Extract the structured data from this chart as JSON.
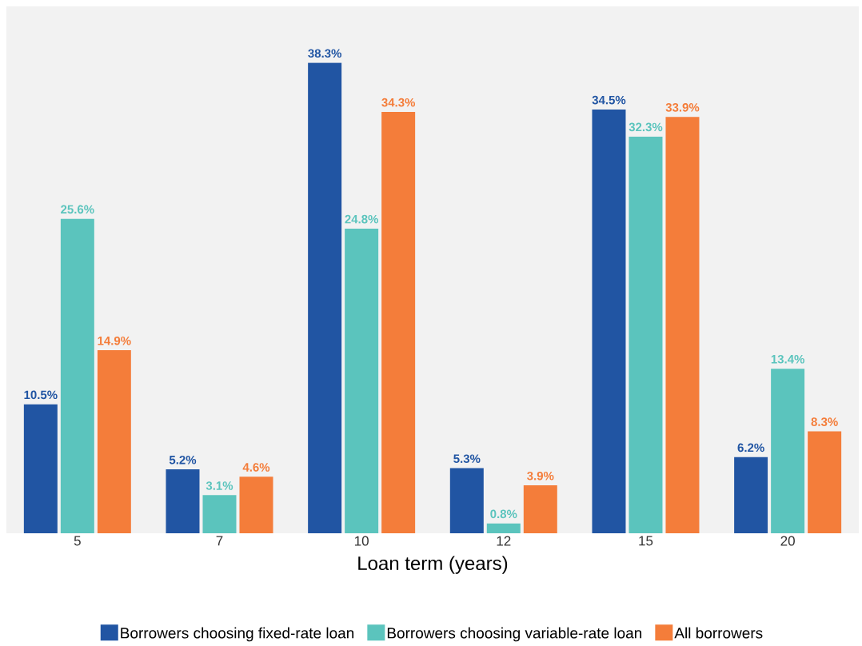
{
  "chart_data": {
    "type": "bar",
    "xlabel": "Loan term (years)",
    "categories": [
      "5",
      "7",
      "10",
      "12",
      "15",
      "20"
    ],
    "series": [
      {
        "name": "Borrowers choosing fixed-rate loan",
        "color": "#2155a3",
        "values": [
          10.5,
          5.2,
          38.3,
          5.3,
          34.5,
          6.2
        ],
        "value_labels": [
          "10.5%",
          "5.2%",
          "38.3%",
          "5.3%",
          "34.5%",
          "6.2%"
        ]
      },
      {
        "name": "Borrowers choosing variable-rate loan",
        "color": "#5bc4bd",
        "values": [
          25.6,
          3.1,
          24.8,
          0.8,
          32.3,
          13.4
        ],
        "value_labels": [
          "25.6%",
          "3.1%",
          "24.8%",
          "0.8%",
          "32.3%",
          "13.4%"
        ]
      },
      {
        "name": "All borrowers",
        "color": "#f47d3a",
        "values": [
          14.9,
          4.6,
          34.3,
          3.9,
          33.9,
          8.3
        ],
        "value_labels": [
          "14.9%",
          "4.6%",
          "34.3%",
          "3.9%",
          "33.9%",
          "8.3%"
        ]
      }
    ],
    "legend": "bottom"
  }
}
